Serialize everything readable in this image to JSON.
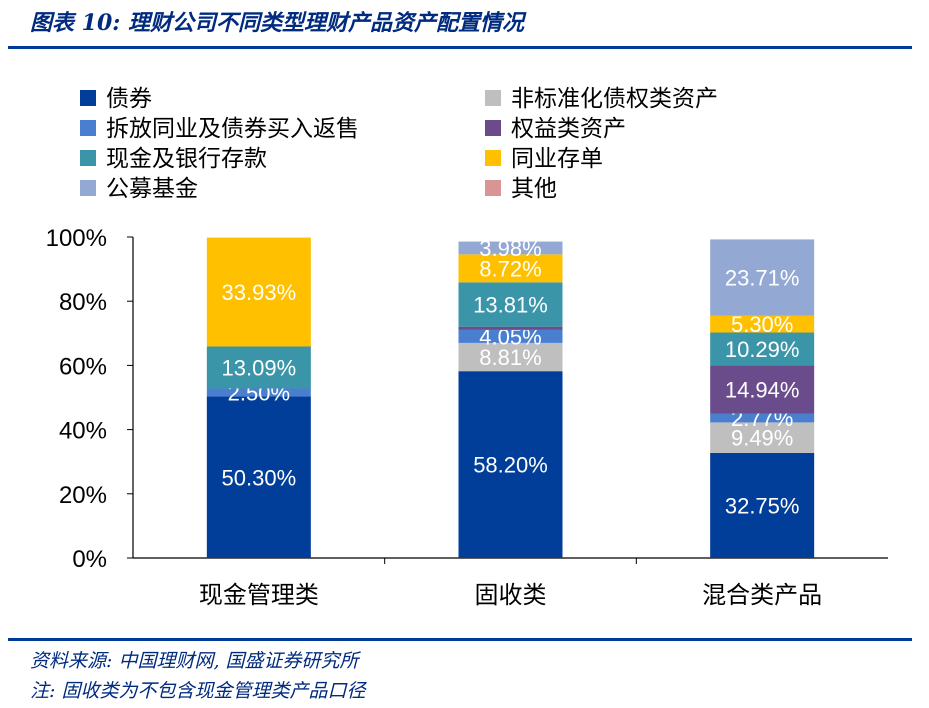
{
  "header": {
    "title": "图表 10:  理财公司不同类型理财产品资产配置情况"
  },
  "footer": {
    "source": "资料来源:  中国理财网,  国盛证券研究所",
    "note": "注:  固收类为不包含现金管理类产品口径"
  },
  "chart_data": {
    "type": "bar",
    "stacked": true,
    "title": "理财公司不同类型理财产品资产配置情况",
    "categories": [
      "现金管理类",
      "固收类",
      "混合类产品"
    ],
    "ylim": [
      0,
      100
    ],
    "yticks": [
      0,
      20,
      40,
      60,
      80,
      100
    ],
    "ytick_labels": [
      "0%",
      "20%",
      "40%",
      "60%",
      "80%",
      "100%"
    ],
    "grid": false,
    "legend_position": "top",
    "series": [
      {
        "name": "债券",
        "color": "#003e99",
        "values": [
          50.3,
          58.2,
          32.75
        ],
        "labels": [
          "50.30%",
          "58.20%",
          "32.75%"
        ],
        "label_color": "#ffffff"
      },
      {
        "name": "非标准化债权类资产",
        "color": "#bfbfbf",
        "values": [
          0,
          8.81,
          9.49
        ],
        "labels": [
          "",
          "8.81%",
          "9.49%"
        ],
        "label_color": "#ffffff"
      },
      {
        "name": "拆放同业及债券买入返售",
        "color": "#4a7fd0",
        "values": [
          2.5,
          4.05,
          2.77
        ],
        "labels": [
          "2.50%",
          "4.05%",
          "2.77%"
        ],
        "label_color": "#ffffff"
      },
      {
        "name": "权益类资产",
        "color": "#6a4b8c",
        "values": [
          0,
          1.0,
          14.94
        ],
        "labels": [
          "",
          "",
          "14.94%"
        ],
        "label_color": "#ffffff"
      },
      {
        "name": "现金及银行存款",
        "color": "#3b95a8",
        "values": [
          13.09,
          13.81,
          10.29
        ],
        "labels": [
          "13.09%",
          "13.81%",
          "10.29%"
        ],
        "label_color": "#ffffff"
      },
      {
        "name": "同业存单",
        "color": "#ffc000",
        "values": [
          33.93,
          8.72,
          5.3
        ],
        "labels": [
          "33.93%",
          "8.72%",
          "5.30%"
        ],
        "label_color": "#ffffff"
      },
      {
        "name": "公募基金",
        "color": "#94a8d4",
        "values": [
          0,
          3.98,
          23.71
        ],
        "labels": [
          "",
          "3.98%",
          "23.71%"
        ],
        "label_color": "#ffffff"
      },
      {
        "name": "其他",
        "color": "#d99594",
        "values": [
          0,
          0,
          0
        ],
        "labels": [
          "",
          "",
          ""
        ],
        "label_color": "#ffffff"
      }
    ]
  }
}
